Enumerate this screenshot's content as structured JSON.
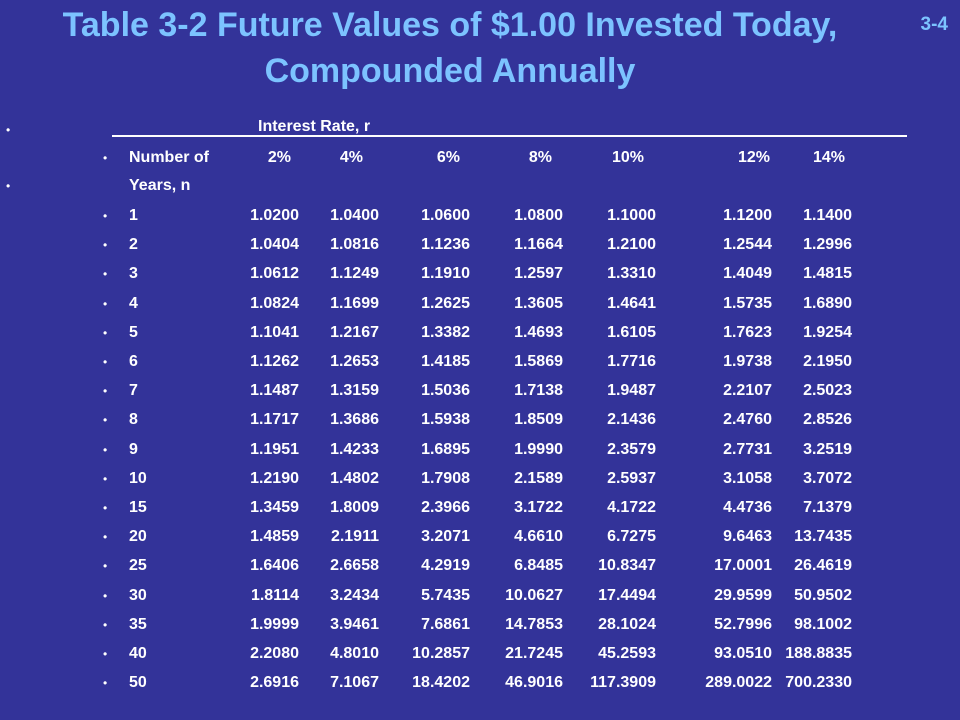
{
  "title_line1": "Table 3-2 Future Values of $1.00 Invested Today,",
  "title_line2": "Compounded Annually",
  "slide_number": "3-4",
  "header": {
    "interest_rate": "Interest Rate, r",
    "number_of": "Number of",
    "years": "Years, n",
    "rates": [
      "2%",
      "4%",
      "6%",
      "8%",
      "10%",
      "12%",
      "14%"
    ]
  },
  "rows": [
    {
      "n": "1",
      "values": [
        "1.0200",
        "1.0400",
        "1.0600",
        "1.0800",
        "1.1000",
        "1.1200",
        "1.1400"
      ]
    },
    {
      "n": "2",
      "values": [
        "1.0404",
        "1.0816",
        "1.1236",
        "1.1664",
        "1.2100",
        "1.2544",
        "1.2996"
      ]
    },
    {
      "n": "3",
      "values": [
        "1.0612",
        "1.1249",
        "1.1910",
        "1.2597",
        "1.3310",
        "1.4049",
        "1.4815"
      ]
    },
    {
      "n": "4",
      "values": [
        "1.0824",
        "1.1699",
        "1.2625",
        "1.3605",
        "1.4641",
        "1.5735",
        "1.6890"
      ]
    },
    {
      "n": "5",
      "values": [
        "1.1041",
        "1.2167",
        "1.3382",
        "1.4693",
        "1.6105",
        "1.7623",
        "1.9254"
      ]
    },
    {
      "n": "6",
      "values": [
        "1.1262",
        "1.2653",
        "1.4185",
        "1.5869",
        "1.7716",
        "1.9738",
        "2.1950"
      ]
    },
    {
      "n": "7",
      "values": [
        "1.1487",
        "1.3159",
        "1.5036",
        "1.7138",
        "1.9487",
        "2.2107",
        "2.5023"
      ]
    },
    {
      "n": "8",
      "values": [
        "1.1717",
        "1.3686",
        "1.5938",
        "1.8509",
        "2.1436",
        "2.4760",
        "2.8526"
      ]
    },
    {
      "n": "9",
      "values": [
        "1.1951",
        "1.4233",
        "1.6895",
        "1.9990",
        "2.3579",
        "2.7731",
        "3.2519"
      ]
    },
    {
      "n": "10",
      "values": [
        "1.2190",
        "1.4802",
        "1.7908",
        "2.1589",
        "2.5937",
        "3.1058",
        "3.7072"
      ]
    },
    {
      "n": "15",
      "values": [
        "1.3459",
        "1.8009",
        "2.3966",
        "3.1722",
        "4.1722",
        "4.4736",
        "7.1379"
      ]
    },
    {
      "n": "20",
      "values": [
        "1.4859",
        "2.1911",
        "3.2071",
        "4.6610",
        "6.7275",
        "9.6463",
        "13.7435"
      ]
    },
    {
      "n": "25",
      "values": [
        "1.6406",
        "2.6658",
        "4.2919",
        "6.8485",
        "10.8347",
        "17.0001",
        "26.4619"
      ]
    },
    {
      "n": "30",
      "values": [
        "1.8114",
        "3.2434",
        "5.7435",
        "10.0627",
        "17.4494",
        "29.9599",
        "50.9502"
      ]
    },
    {
      "n": "35",
      "values": [
        "1.9999",
        "3.9461",
        "7.6861",
        "14.7853",
        "28.1024",
        "52.7996",
        "98.1002"
      ]
    },
    {
      "n": "40",
      "values": [
        "2.2080",
        "4.8010",
        "10.2857",
        "21.7245",
        "45.2593",
        "93.0510",
        "188.8835"
      ]
    },
    {
      "n": "50",
      "values": [
        "2.6916",
        "7.1067",
        "18.4202",
        "46.9016",
        "117.3909",
        "289.0022",
        "700.2330"
      ]
    }
  ]
}
